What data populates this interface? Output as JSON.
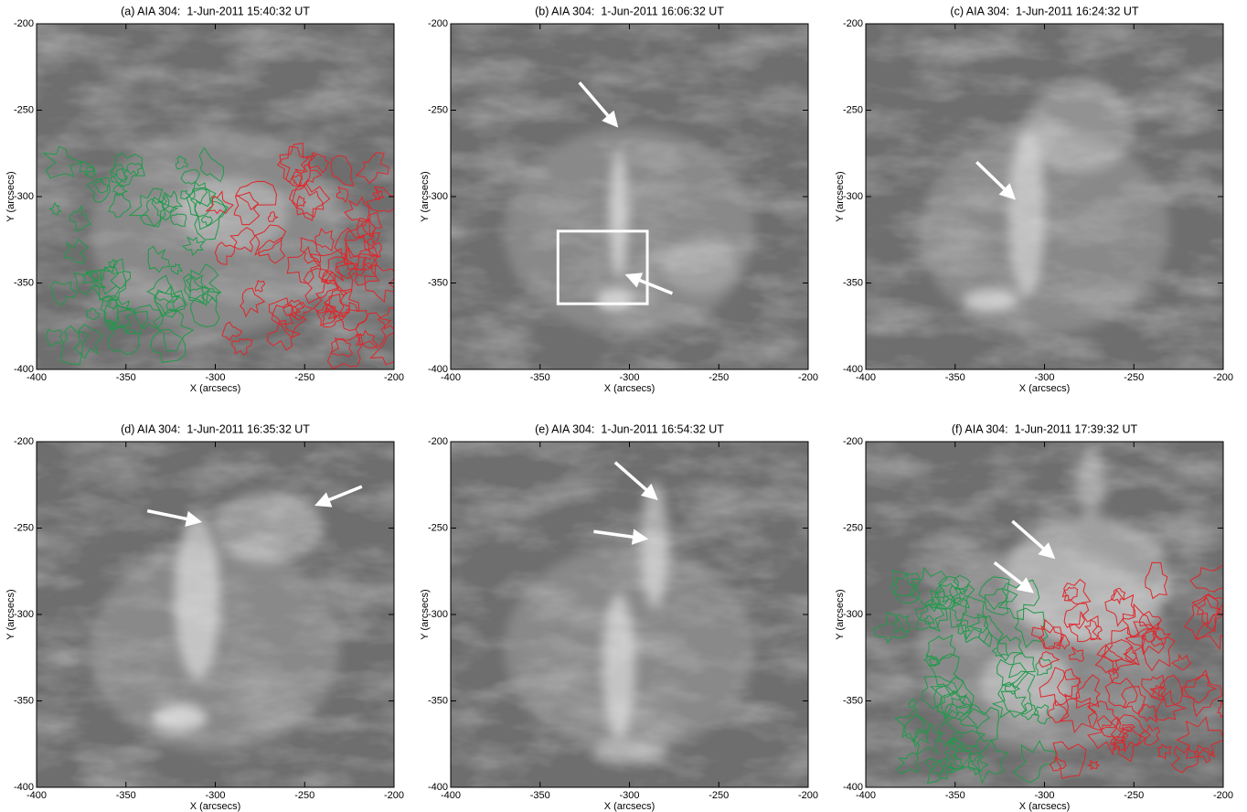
{
  "chart_data": [
    {
      "type": "image",
      "title": "(a) AIA 304:  1-Jun-2011 15:40:32 UT",
      "xlabel": "X (arcsecs)",
      "ylabel": "Y (arcsecs)",
      "xlim": [
        -400,
        -200
      ],
      "ylim": [
        -400,
        -200
      ],
      "xticks": [
        -400,
        -350,
        -300,
        -250,
        -200
      ],
      "yticks": [
        -400,
        -350,
        -300,
        -250,
        -200
      ]
    },
    {
      "type": "image",
      "title": "(b) AIA 304:  1-Jun-2011 16:06:32 UT",
      "xlabel": "X (arcsecs)",
      "ylabel": "Y (arcsecs)",
      "xlim": [
        -400,
        -200
      ],
      "ylim": [
        -400,
        -200
      ],
      "xticks": [
        -400,
        -350,
        -300,
        -250,
        -200
      ],
      "yticks": [
        -400,
        -350,
        -300,
        -250,
        -200
      ]
    },
    {
      "type": "image",
      "title": "(c) AIA 304:  1-Jun-2011 16:24:32 UT",
      "xlabel": "X (arcsecs)",
      "ylabel": "Y (arcsecs)",
      "xlim": [
        -400,
        -200
      ],
      "ylim": [
        -400,
        -200
      ],
      "xticks": [
        -400,
        -350,
        -300,
        -250,
        -200
      ],
      "yticks": [
        -400,
        -350,
        -300,
        -250,
        -200
      ]
    },
    {
      "type": "image",
      "title": "(d) AIA 304:  1-Jun-2011 16:35:32 UT",
      "xlabel": "X (arcsecs)",
      "ylabel": "Y (arcsecs)",
      "xlim": [
        -400,
        -200
      ],
      "ylim": [
        -400,
        -200
      ],
      "xticks": [
        -400,
        -350,
        -300,
        -250,
        -200
      ],
      "yticks": [
        -400,
        -350,
        -300,
        -250,
        -200
      ]
    },
    {
      "type": "image",
      "title": "(e) AIA 304:  1-Jun-2011 16:54:32 UT",
      "xlabel": "X (arcsecs)",
      "ylabel": "Y (arcsecs)",
      "xlim": [
        -400,
        -200
      ],
      "ylim": [
        -400,
        -200
      ],
      "xticks": [
        -400,
        -350,
        -300,
        -250,
        -200
      ],
      "yticks": [
        -400,
        -350,
        -300,
        -250,
        -200
      ]
    },
    {
      "type": "image",
      "title": "(f) AIA 304:  1-Jun-2011 17:39:32 UT",
      "xlabel": "X (arcsecs)",
      "ylabel": "Y (arcsecs)",
      "xlim": [
        -400,
        -200
      ],
      "ylim": [
        -400,
        -200
      ],
      "xticks": [
        -400,
        -350,
        -300,
        -250,
        -200
      ],
      "yticks": [
        -400,
        -350,
        -300,
        -250,
        -200
      ]
    }
  ]
}
